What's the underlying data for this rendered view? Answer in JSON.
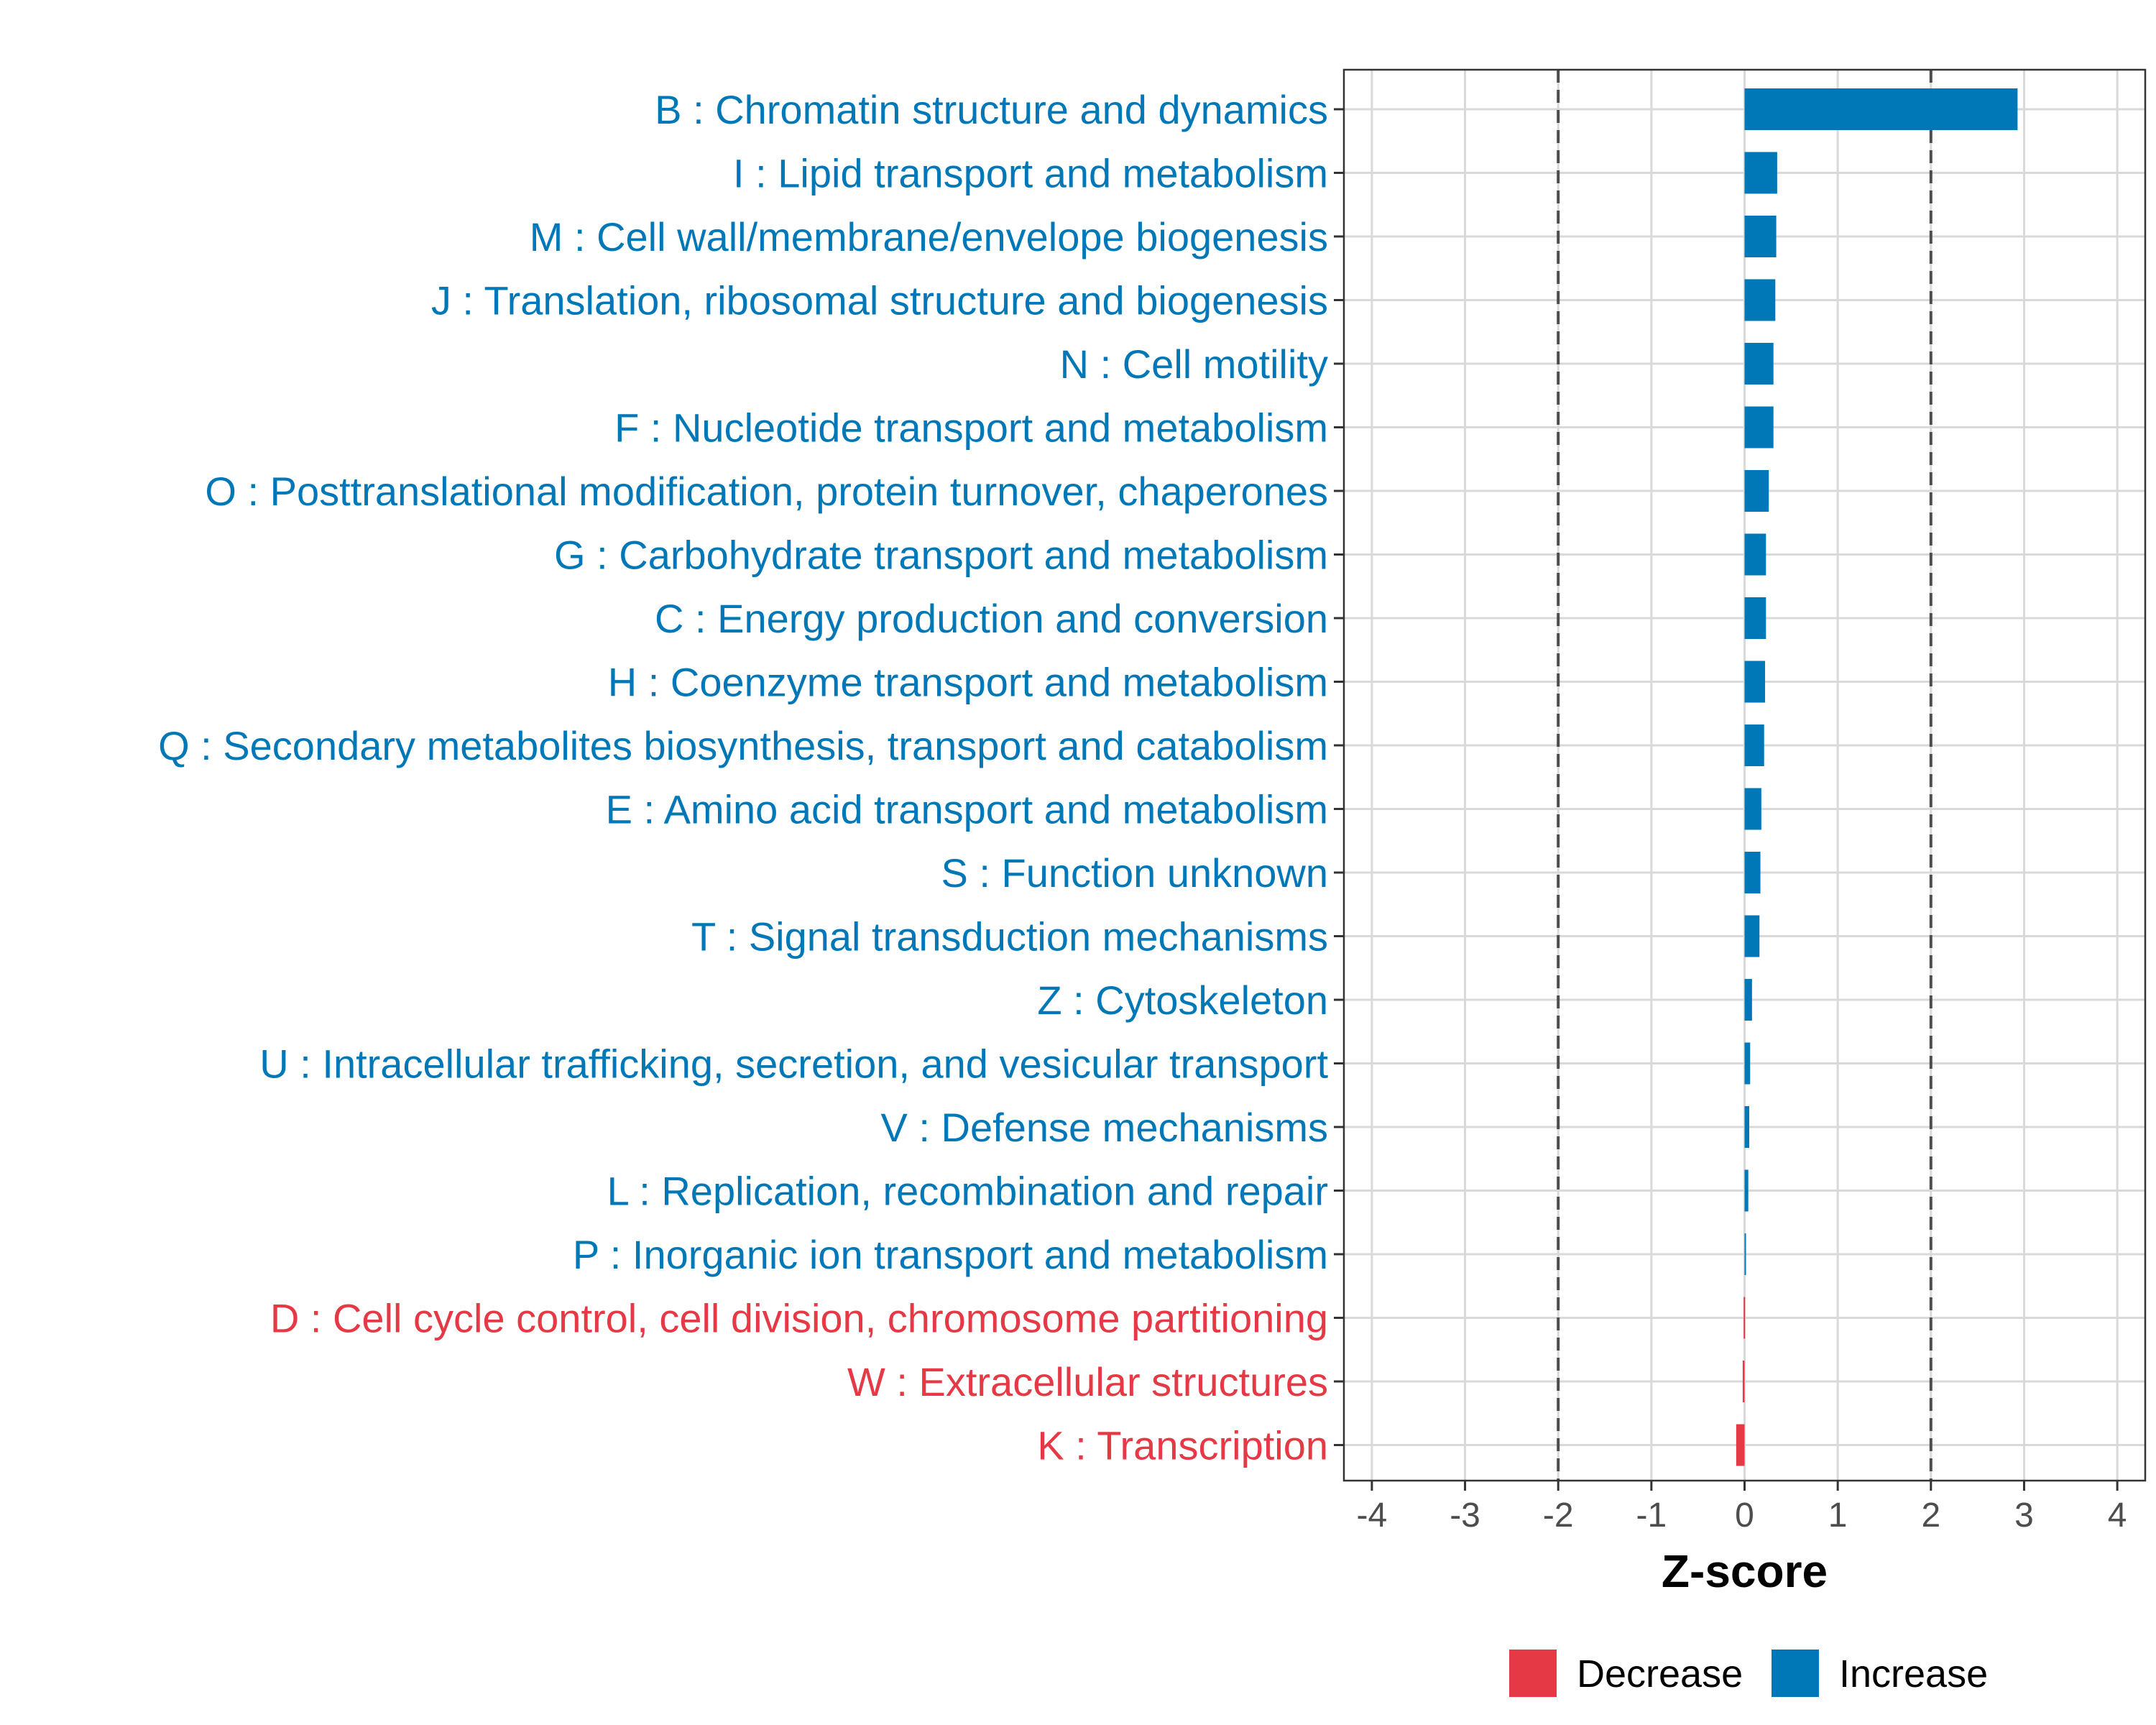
{
  "chart_data": {
    "type": "bar",
    "orientation": "horizontal",
    "xlabel": "Z-score",
    "xlim": [
      -4.3,
      4.3
    ],
    "xticks": [
      -4,
      -3,
      -2,
      -1,
      0,
      1,
      2,
      3,
      4
    ],
    "xtick_labels": [
      "-4",
      "-3",
      "-2",
      "-1",
      "0",
      "1",
      "2",
      "3",
      "4"
    ],
    "reference_lines": [
      -2,
      2
    ],
    "grid": true,
    "categories": [
      "B : Chromatin structure and dynamics",
      "I : Lipid transport and metabolism",
      "M : Cell wall/membrane/envelope biogenesis",
      "J : Translation, ribosomal structure and biogenesis",
      "N : Cell motility",
      "F : Nucleotide transport and metabolism",
      "O : Posttranslational modification, protein turnover, chaperones",
      "G : Carbohydrate transport and metabolism",
      "C : Energy production and conversion",
      "H : Coenzyme transport and metabolism",
      "Q : Secondary metabolites biosynthesis, transport and catabolism",
      "E : Amino acid transport and metabolism",
      "S : Function unknown",
      "T : Signal transduction mechanisms",
      "Z : Cytoskeleton",
      "U : Intracellular trafficking, secretion, and vesicular transport",
      "V : Defense mechanisms",
      "L : Replication, recombination and repair",
      "P : Inorganic ion transport and metabolism",
      "D : Cell cycle control, cell division, chromosome partitioning",
      "W : Extracellular structures",
      "K : Transcription"
    ],
    "values": [
      2.93,
      0.35,
      0.34,
      0.33,
      0.31,
      0.31,
      0.26,
      0.23,
      0.23,
      0.22,
      0.21,
      0.18,
      0.17,
      0.16,
      0.08,
      0.06,
      0.05,
      0.04,
      0.01,
      -0.01,
      -0.02,
      -0.09
    ],
    "legend": {
      "position": "bottom",
      "entries": [
        {
          "label": "Decrease",
          "color": "#E63946"
        },
        {
          "label": "Increase",
          "color": "#0077B6"
        }
      ]
    }
  }
}
